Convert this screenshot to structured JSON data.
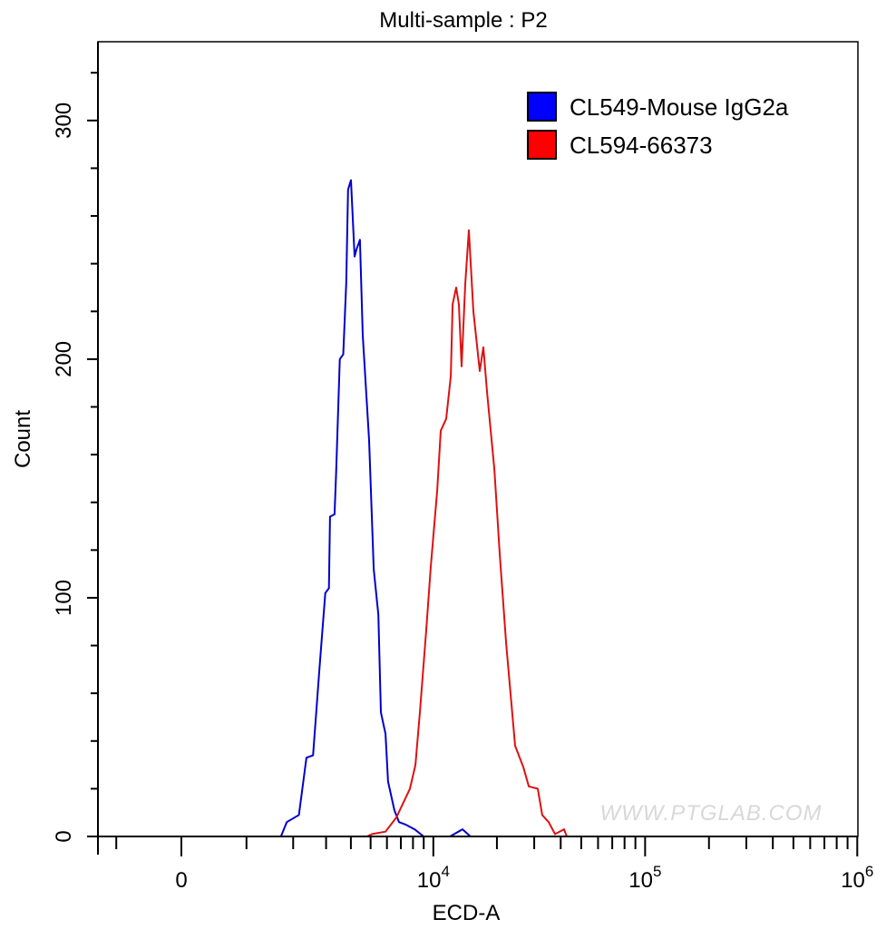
{
  "chart_data": {
    "type": "line",
    "title": "Multi-sample : P2",
    "xlabel": "ECD-A",
    "ylabel": "Count",
    "x_scale": "biexponential",
    "xlim": [
      -1360,
      1000000
    ],
    "ylim": [
      0,
      333
    ],
    "grid": false,
    "legend_placement": "top-right",
    "x_ticks": [
      {
        "value": 0,
        "base": "0",
        "exp": ""
      },
      {
        "value": 10000,
        "base": "10",
        "exp": "4"
      },
      {
        "value": 100000,
        "base": "10",
        "exp": "5"
      },
      {
        "value": 1000000,
        "base": "10",
        "exp": "6"
      }
    ],
    "y_ticks": [
      {
        "value": 0,
        "label": "0"
      },
      {
        "value": 100,
        "label": "100"
      },
      {
        "value": 200,
        "label": "200"
      },
      {
        "value": 300,
        "label": "300"
      }
    ],
    "series": [
      {
        "name": "CL549-Mouse IgG2a",
        "color": "#0000ff",
        "line_color": "#0000cc",
        "x": [
          1700,
          1838,
          2153,
          2366,
          2565,
          2778,
          2973,
          3104,
          3143,
          3312,
          3377,
          3521,
          3664,
          3795,
          3873,
          4003,
          4173,
          4264,
          4434,
          4577,
          4916,
          5177,
          5451,
          5607,
          5907,
          6077,
          6520,
          6859,
          7355,
          8137,
          9000,
          12000,
          13757,
          15000
        ],
        "y": [
          0,
          6,
          9,
          33,
          34,
          71,
          102,
          104,
          134,
          135,
          153,
          200,
          202,
          232,
          271,
          275,
          243,
          246,
          250,
          210,
          166,
          112,
          93,
          52,
          43,
          23,
          11,
          6,
          5,
          3,
          0,
          0,
          3,
          0
        ]
      },
      {
        "name": "CL594-66373",
        "color": "#ff0000",
        "line_color": "#dd1111",
        "x": [
          4800,
          5073,
          5907,
          6663,
          7733,
          8215,
          8632,
          9245,
          9728,
          10432,
          10849,
          11514,
          12101,
          12349,
          12831,
          13223,
          13614,
          14174,
          14735,
          15478,
          16587,
          17265,
          17969,
          19443,
          20629,
          22103,
          24385,
          26654,
          28284,
          31179,
          32743,
          35091,
          37594,
          41493,
          42732
        ],
        "y": [
          0,
          1,
          2,
          8,
          20,
          30,
          52,
          86,
          113,
          145,
          170,
          175,
          193,
          223,
          230,
          223,
          197,
          232,
          254,
          220,
          195,
          205,
          186,
          154,
          118,
          81,
          38,
          29,
          21,
          20,
          9,
          6,
          1,
          3,
          0
        ]
      }
    ],
    "watermark": "WWW.PTGLAB.COM"
  }
}
